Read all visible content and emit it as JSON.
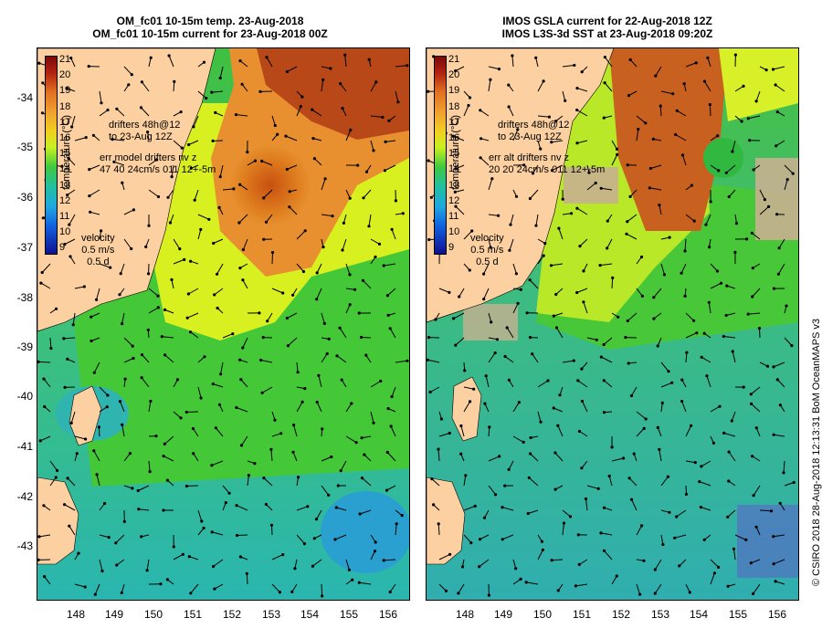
{
  "left": {
    "title_line1": "OM_fc01 10-15m temp. 23-Aug-2018",
    "title_line2": "OM_fc01 10-15m current for 23-Aug-2018 00Z",
    "drifters_line1": "drifters 48h@12",
    "drifters_line2": "to 23-Aug 12Z",
    "err_line1": "err model drifters nv z",
    "err_line2": "47 40 24cm/s 011 12+-5m"
  },
  "right": {
    "title_line1": "IMOS GSLA current for 22-Aug-2018 12Z",
    "title_line2": "IMOS L3S-3d SST at 23-Aug-2018 09:20Z",
    "drifters_line1": "drifters 48h@12",
    "drifters_line2": "to 23-Aug 12Z",
    "err_line1": "err alt drifters nv z",
    "err_line2": "20 20 24cm/s 011 12+-5m"
  },
  "colorbar": {
    "labels": [
      "21",
      "20",
      "19",
      "18",
      "17",
      "16",
      "15",
      "14",
      "13",
      "12",
      "11",
      "10",
      "9"
    ],
    "title": "temperature (°C)"
  },
  "velocity": {
    "label": "velocity",
    "speed": "0.5 m/s",
    "time": "0.5 d"
  },
  "y_ticks": [
    "-34",
    "-35",
    "-36",
    "-37",
    "-38",
    "-39",
    "-40",
    "-41",
    "-42",
    "-43"
  ],
  "x_ticks": [
    "148",
    "149",
    "150",
    "151",
    "152",
    "153",
    "154",
    "155",
    "156"
  ],
  "credit": "© CSIRO 2018   28-Aug-2018 12:13:31 BoM OceanMAPS v3",
  "colors": {
    "land": "#fcd0a0",
    "warm": "#d05a10",
    "mid": "#9de02a",
    "cool": "#3ab2a8"
  }
}
